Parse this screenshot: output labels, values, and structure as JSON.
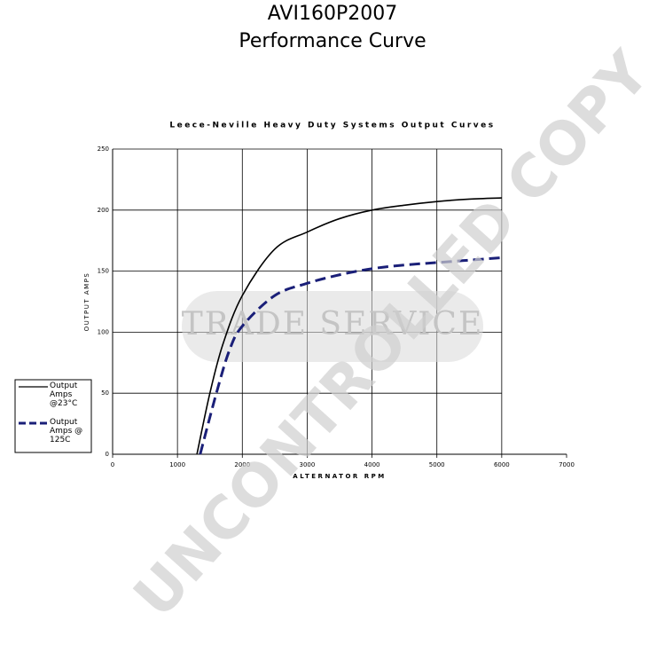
{
  "header": [
    "AVI160P2007",
    "Performance Curve"
  ],
  "watermarks": [
    "TRADE SERVICE",
    "UNCONTROLLED COPY"
  ],
  "chart_data": {
    "type": "line",
    "title": "Leece-Neville Heavy Duty Systems Output Curves",
    "x_label": "ALTERNATOR RPM",
    "y_label": "OUTPUT AMPS",
    "xlim": [
      0,
      7000
    ],
    "xticks": [
      0,
      1000,
      2000,
      3000,
      4000,
      5000,
      6000,
      7000
    ],
    "ylim": [
      0,
      250
    ],
    "yticks": [
      0,
      50,
      100,
      150,
      200,
      250
    ],
    "grid": true,
    "legend": "left",
    "series": [
      {
        "name": "Output Amps @23°C",
        "color": "#000000",
        "dash": false,
        "x": [
          1300,
          1500,
          1700,
          2000,
          2500,
          3000,
          3500,
          4000,
          4500,
          5000,
          5500,
          6000
        ],
        "values": [
          0,
          50,
          90,
          130,
          168,
          182,
          193,
          200,
          204,
          207,
          209,
          210
        ]
      },
      {
        "name": "Output Amps @ 125C",
        "color": "#1a1f78",
        "dash": true,
        "x": [
          1350,
          1600,
          1800,
          2000,
          2500,
          3000,
          3500,
          4000,
          4500,
          5000,
          5500,
          6000
        ],
        "values": [
          0,
          50,
          85,
          105,
          130,
          140,
          147,
          152,
          155,
          157,
          159,
          161
        ]
      }
    ]
  }
}
